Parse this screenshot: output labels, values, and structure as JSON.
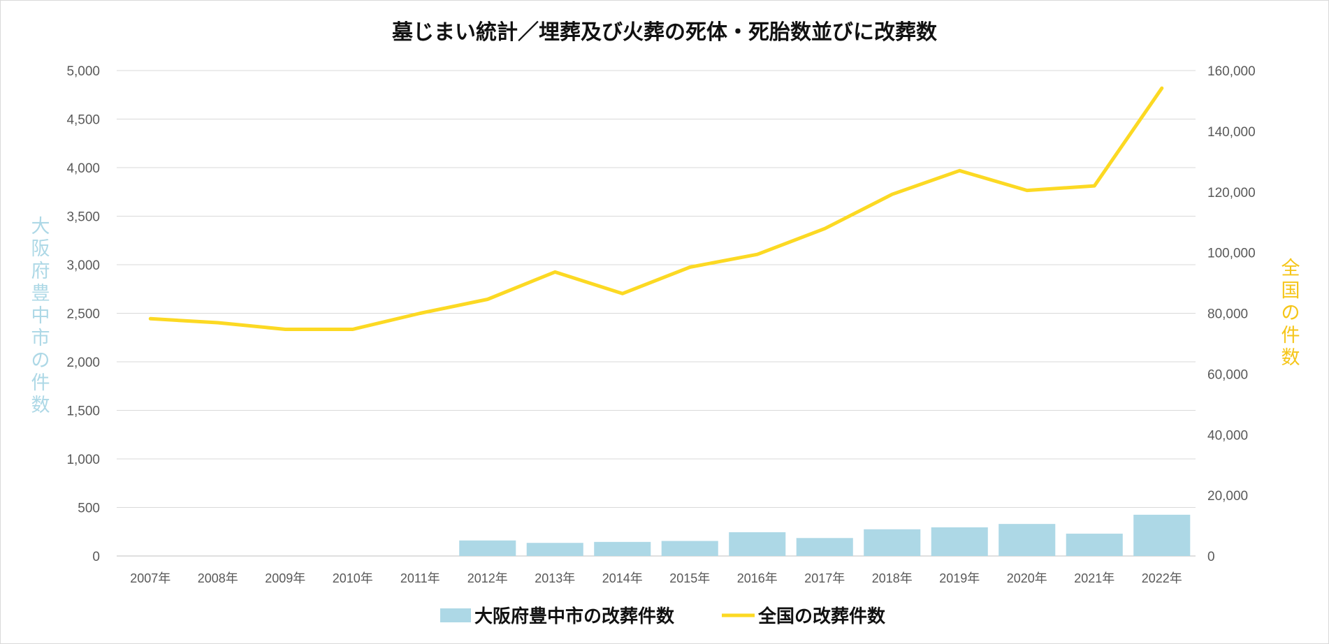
{
  "chart_data": {
    "type": "bar+line",
    "title": "墓じまい統計／埋葬及び火葬の死体・死胎数並びに改葬数",
    "categories": [
      "2007年",
      "2008年",
      "2009年",
      "2010年",
      "2011年",
      "2012年",
      "2013年",
      "2014年",
      "2015年",
      "2016年",
      "2017年",
      "2018年",
      "2019年",
      "2020年",
      "2021年",
      "2022年"
    ],
    "series": [
      {
        "name": "大阪府豊中市の改葬件数",
        "type": "bar",
        "axis": "left",
        "color": "#add8e6",
        "values": [
          null,
          null,
          null,
          null,
          null,
          160,
          135,
          145,
          155,
          245,
          185,
          275,
          295,
          330,
          230,
          425
        ]
      },
      {
        "name": "全国の改葬件数",
        "type": "line",
        "axis": "right",
        "color": "#fcd923",
        "values": [
          78200,
          76900,
          74700,
          74700,
          80000,
          84600,
          93600,
          86500,
          95200,
          99400,
          107900,
          119200,
          127000,
          120500,
          122000,
          154200
        ]
      }
    ],
    "y_left": {
      "label": "大阪府豊中市の件数",
      "range": [
        0,
        5000
      ],
      "ticks": [
        "0",
        "500",
        "1,000",
        "1,500",
        "2,000",
        "2,500",
        "3,000",
        "3,500",
        "4,000",
        "4,500",
        "5,000"
      ],
      "label_color": "#add8e6"
    },
    "y_right": {
      "label": "全国の件数",
      "range": [
        0,
        160000
      ],
      "ticks": [
        "0",
        "20,000",
        "40,000",
        "60,000",
        "80,000",
        "100,000",
        "120,000",
        "140,000",
        "160,000"
      ],
      "label_color": "#f5c518"
    },
    "grid": true,
    "legend_position": "bottom"
  }
}
